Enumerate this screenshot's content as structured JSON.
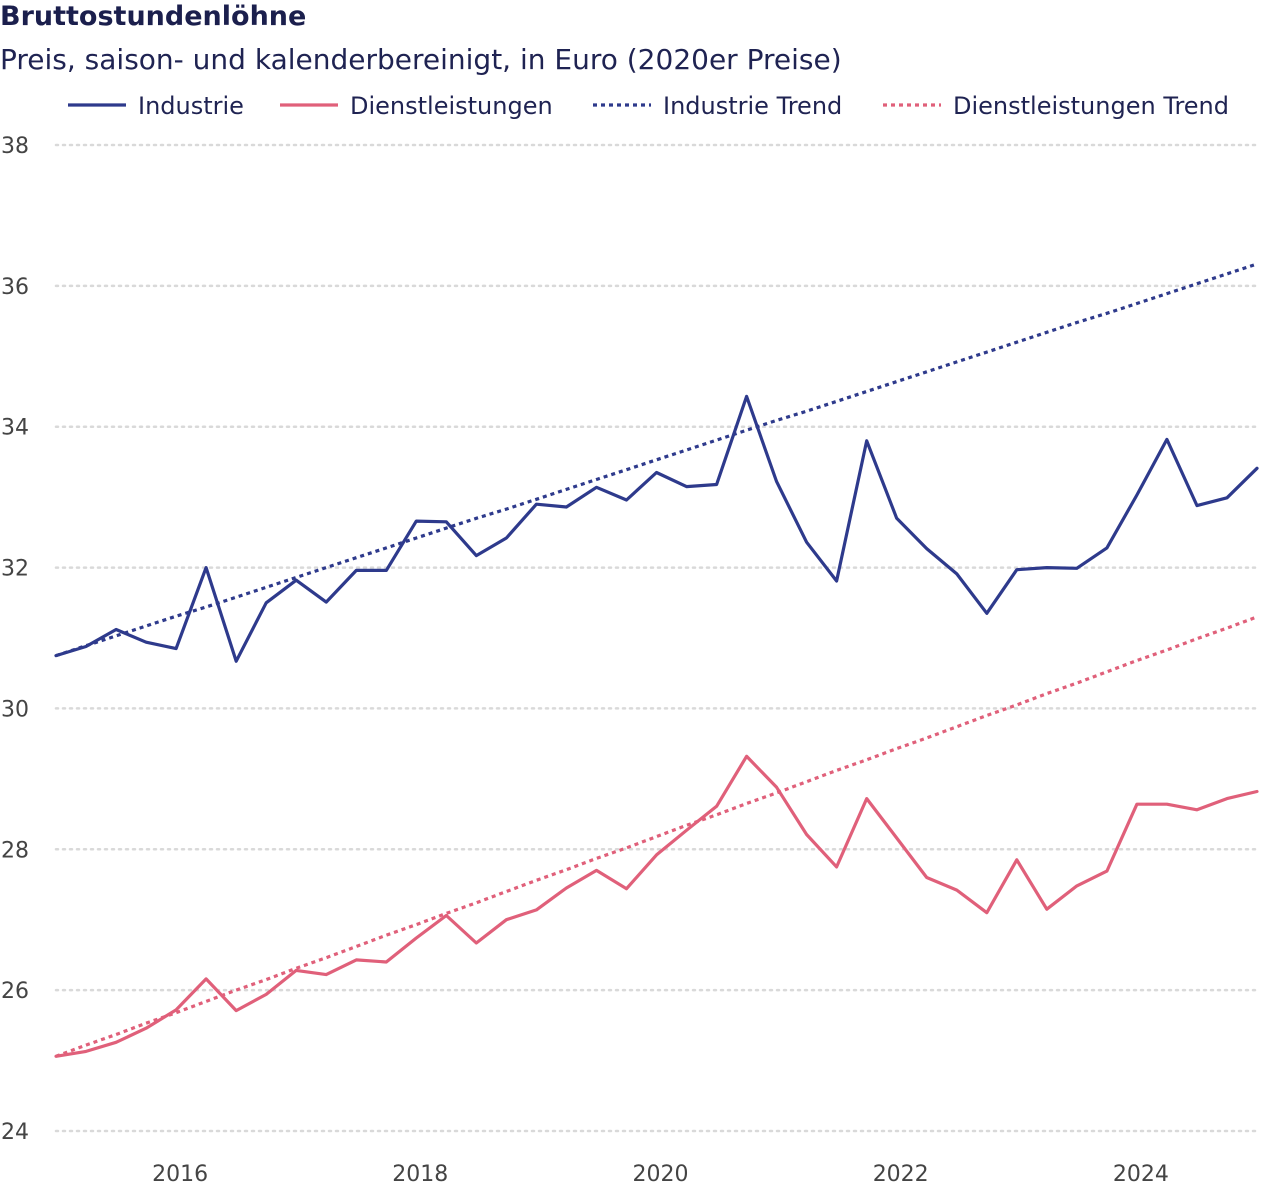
{
  "chart_data": {
    "type": "line",
    "title": "Bruttostundenlöhne",
    "subtitle": "Preis, saison- und kalenderbereinigt, in Euro (2020er Preise)",
    "x_ticks": [
      "2016",
      "2018",
      "2020",
      "2022",
      "2024"
    ],
    "y_ticks": [
      "24",
      "26",
      "28",
      "30",
      "32",
      "34",
      "36",
      "38"
    ],
    "xlim": [
      2015.0,
      2025.0
    ],
    "ylim": [
      24,
      38
    ],
    "grid": "horizontal dotted",
    "legend_position": "top",
    "x": [
      2015.0,
      2015.25,
      2015.5,
      2015.75,
      2016.0,
      2016.25,
      2016.5,
      2016.75,
      2017.0,
      2017.25,
      2017.5,
      2017.75,
      2018.0,
      2018.25,
      2018.5,
      2018.75,
      2019.0,
      2019.25,
      2019.5,
      2019.75,
      2020.0,
      2020.25,
      2020.5,
      2020.75,
      2021.0,
      2021.25,
      2021.5,
      2021.75,
      2022.0,
      2022.25,
      2022.5,
      2022.75,
      2023.0,
      2023.25,
      2023.5,
      2023.75,
      2024.0,
      2024.25,
      2024.5,
      2024.75,
      2025.0
    ],
    "series": [
      {
        "name": "Industrie",
        "color": "#2e3a8c",
        "style": "solid",
        "values": [
          30.75,
          30.88,
          31.12,
          30.94,
          30.85,
          32.0,
          30.67,
          31.5,
          31.82,
          31.51,
          31.96,
          31.96,
          32.66,
          32.65,
          32.17,
          32.42,
          32.9,
          32.86,
          33.14,
          32.96,
          33.35,
          33.15,
          33.18,
          34.43,
          33.22,
          32.36,
          31.81,
          33.8,
          32.7,
          32.27,
          31.91,
          31.35,
          31.97,
          32.0,
          31.99,
          32.28,
          33.03,
          33.82,
          32.88,
          32.99,
          33.41
        ]
      },
      {
        "name": "Dienstleistungen",
        "color": "#e0607a",
        "style": "solid",
        "values": [
          25.06,
          25.13,
          25.26,
          25.46,
          25.72,
          26.16,
          25.71,
          25.94,
          26.28,
          26.22,
          26.43,
          26.4,
          26.74,
          27.06,
          26.67,
          27.0,
          27.14,
          27.45,
          27.7,
          27.44,
          27.92,
          28.27,
          28.61,
          29.32,
          28.88,
          28.21,
          27.75,
          28.72,
          28.16,
          27.6,
          27.42,
          27.1,
          27.85,
          27.15,
          27.48,
          27.69,
          28.64,
          28.64,
          28.56,
          28.72,
          28.82
        ]
      },
      {
        "name": "Industrie Trend",
        "color": "#2e3a8c",
        "style": "dotted",
        "values": [
          30.75,
          30.89,
          31.03,
          31.17,
          31.31,
          31.44,
          31.58,
          31.72,
          31.86,
          32.0,
          32.14,
          32.28,
          32.42,
          32.56,
          32.7,
          32.83,
          32.97,
          33.11,
          33.25,
          33.39,
          33.53,
          33.67,
          33.81,
          33.95,
          34.09,
          34.22,
          34.36,
          34.5,
          34.64,
          34.78,
          34.92,
          35.06,
          35.2,
          35.34,
          35.48,
          35.61,
          35.75,
          35.89,
          36.03,
          36.17,
          36.31
        ]
      },
      {
        "name": "Dienstleistungen Trend",
        "color": "#e0607a",
        "style": "dotted",
        "values": [
          25.06,
          25.22,
          25.37,
          25.53,
          25.68,
          25.84,
          26.0,
          26.15,
          26.31,
          26.46,
          26.62,
          26.78,
          26.93,
          27.09,
          27.24,
          27.4,
          27.56,
          27.71,
          27.87,
          28.02,
          28.18,
          28.34,
          28.49,
          28.65,
          28.8,
          28.96,
          29.12,
          29.27,
          29.43,
          29.58,
          29.74,
          29.9,
          30.05,
          30.21,
          30.36,
          30.52,
          30.68,
          30.83,
          30.99,
          31.14,
          31.3
        ]
      }
    ]
  }
}
